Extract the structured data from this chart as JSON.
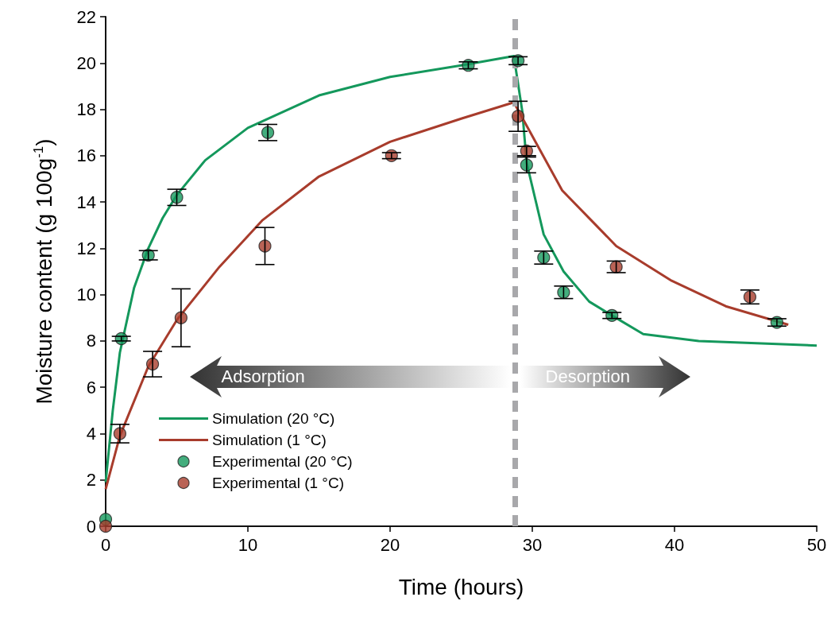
{
  "chart_data": {
    "type": "scatter",
    "xlabel": "Time (hours)",
    "ylabel": "Moisture content (g 100g$^{-1}$)",
    "xlim": [
      0,
      50
    ],
    "xticks": [
      0,
      10,
      20,
      30,
      40,
      50
    ],
    "ylim": [
      0,
      22
    ],
    "yticks": [
      0,
      2,
      4,
      6,
      8,
      10,
      12,
      14,
      16,
      18,
      20,
      22
    ],
    "grid": false,
    "legend": "bottom left",
    "series": [
      {
        "name": "Simulation (20 °C)",
        "type": "line",
        "marker": "none",
        "color": "#14985c",
        "x": [
          0,
          0.5,
          1,
          2,
          3,
          4,
          5,
          7,
          10,
          15,
          20,
          25,
          28.7,
          29.3,
          29.6,
          30.8,
          32.2,
          34,
          35.6,
          37.8,
          41.7,
          50
        ],
        "values": [
          1.9,
          5,
          7.5,
          10.3,
          12,
          13.3,
          14.3,
          15.8,
          17.2,
          18.6,
          19.4,
          19.9,
          20.3,
          17.9,
          15.7,
          12.6,
          11,
          9.7,
          9.1,
          8.3,
          8,
          7.8
        ]
      },
      {
        "name": "Simulation (1 °C)",
        "type": "line",
        "marker": "none",
        "color": "#a83c2c",
        "x": [
          0,
          1,
          3,
          5,
          8,
          11,
          15,
          20,
          25,
          28.7,
          32.1,
          35.9,
          39.8,
          43.6,
          48
        ],
        "values": [
          1.6,
          3.9,
          6.9,
          8.9,
          11.2,
          13.2,
          15.1,
          16.6,
          17.6,
          18.3,
          14.5,
          12.1,
          10.6,
          9.5,
          8.7
        ]
      },
      {
        "name": "Experimental (20 °C)",
        "marker": "circle",
        "color": "#14985c",
        "x": [
          0,
          1.1,
          3,
          5,
          11.4,
          25.5,
          29,
          29.6,
          30.8,
          32.2,
          35.6,
          47.2
        ],
        "values": [
          0.3,
          8.1,
          11.7,
          14.2,
          17,
          19.9,
          20.1,
          15.6,
          11.6,
          10.1,
          9.1,
          8.8
        ],
        "errors": [
          null,
          0.1,
          0.2,
          0.35,
          0.35,
          0.15,
          0.17,
          0.34,
          0.28,
          0.27,
          0.13,
          0.16
        ]
      },
      {
        "name": "Experimental (1 °C)",
        "marker": "circle",
        "color": "#a83c2c",
        "x": [
          0,
          1,
          3.3,
          5.3,
          11.2,
          20.1,
          29,
          29.6,
          35.9,
          45.3
        ],
        "values": [
          0,
          4,
          7,
          9,
          12.1,
          16,
          17.7,
          16.2,
          11.2,
          9.9
        ],
        "errors": [
          null,
          0.4,
          0.55,
          1.25,
          0.8,
          0.13,
          0.65,
          0.2,
          0.25,
          0.3
        ]
      }
    ],
    "ref_lines": [
      {
        "axis": "x",
        "value": 28.8,
        "color": "#a8a8ab",
        "line_style": "dashed"
      }
    ],
    "annotations": [
      "Adsorption",
      "Desorption"
    ]
  }
}
